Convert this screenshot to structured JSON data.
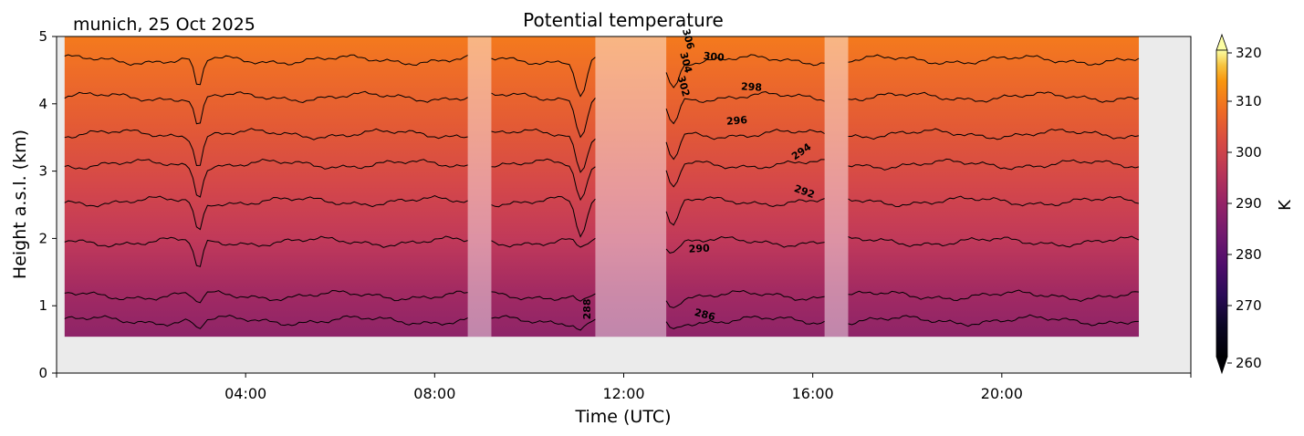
{
  "chart_data": {
    "type": "heatmap",
    "title": "Potential temperature",
    "subtitle": "munich, 25 Oct 2025",
    "xlabel": "Time (UTC)",
    "ylabel": "Height a.s.l. (km)",
    "xlim_hours": [
      0,
      24
    ],
    "ylim": [
      0,
      5
    ],
    "x_ticks": [
      {
        "hour": 0,
        "label": ""
      },
      {
        "hour": 4,
        "label": "04:00"
      },
      {
        "hour": 8,
        "label": "08:00"
      },
      {
        "hour": 12,
        "label": "12:00"
      },
      {
        "hour": 16,
        "label": "16:00"
      },
      {
        "hour": 20,
        "label": "20:00"
      },
      {
        "hour": 24,
        "label": ""
      }
    ],
    "y_ticks": [
      {
        "value": 0,
        "label": "0"
      },
      {
        "value": 1,
        "label": "1"
      },
      {
        "value": 2,
        "label": "2"
      },
      {
        "value": 3,
        "label": "3"
      },
      {
        "value": 4,
        "label": "4"
      },
      {
        "value": 5,
        "label": "5"
      }
    ],
    "data_extent": {
      "time_start_hour": 0.17,
      "time_end_hour": 22.9,
      "height_min_km": 0.54,
      "height_max_km": 5
    },
    "colorbar": {
      "label": "K",
      "range": [
        260,
        320
      ],
      "extend": "both",
      "ticks": [
        {
          "value": 260,
          "label": "260"
        },
        {
          "value": 270,
          "label": "270"
        },
        {
          "value": 280,
          "label": "280"
        },
        {
          "value": 290,
          "label": "290"
        },
        {
          "value": 300,
          "label": "300"
        },
        {
          "value": 310,
          "label": "310"
        },
        {
          "value": 320,
          "label": "320"
        }
      ],
      "colormap": "inferno",
      "levels_step": 2
    },
    "shaded_intervals_hours": [
      {
        "start": 8.7,
        "end": 9.2
      },
      {
        "start": 11.4,
        "end": 12.9
      },
      {
        "start": 16.25,
        "end": 16.75
      }
    ],
    "contours": [
      {
        "level": 286,
        "label": "286",
        "mean_height_km": 0.78
      },
      {
        "level": 288,
        "label": "288",
        "mean_height_km": 1.15
      },
      {
        "level": 290,
        "label": "290",
        "mean_height_km": 1.95
      },
      {
        "level": 292,
        "label": "292",
        "mean_height_km": 2.55
      },
      {
        "level": 294,
        "label": "294",
        "mean_height_km": 3.1
      },
      {
        "level": 296,
        "label": "296",
        "mean_height_km": 3.55
      },
      {
        "level": 298,
        "label": "298",
        "mean_height_km": 4.1
      },
      {
        "level": 300,
        "label": "300",
        "mean_height_km": 4.65
      },
      {
        "level": 302,
        "label": "302",
        "mean_height_km": null
      },
      {
        "level": 304,
        "label": "304",
        "mean_height_km": null
      },
      {
        "level": 306,
        "label": "306",
        "mean_height_km": null
      }
    ],
    "contour_labels_shown": [
      {
        "text": "300",
        "hour": 13.9,
        "height_km": 4.65
      },
      {
        "text": "298",
        "hour": 14.7,
        "height_km": 4.2
      },
      {
        "text": "296",
        "hour": 14.4,
        "height_km": 3.7
      },
      {
        "text": "294",
        "hour": 15.8,
        "height_km": 3.25
      },
      {
        "text": "292",
        "hour": 15.8,
        "height_km": 2.65
      },
      {
        "text": "290",
        "hour": 13.6,
        "height_km": 1.8
      },
      {
        "text": "288",
        "hour": 11.3,
        "height_km": 0.95
      },
      {
        "text": "286",
        "hour": 13.7,
        "height_km": 0.82
      },
      {
        "text": "304",
        "hour": 13.25,
        "height_km": 4.6
      },
      {
        "text": "302",
        "hour": 13.2,
        "height_km": 4.25
      },
      {
        "text": "306",
        "hour": 13.3,
        "height_km": 4.95
      }
    ],
    "grid": false
  },
  "colors": {
    "background_panel": "#ebebeb",
    "contour_line": "#000000"
  }
}
